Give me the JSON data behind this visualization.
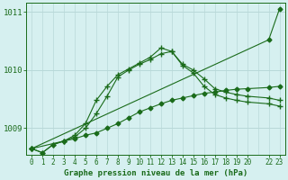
{
  "title": "Graphe pression niveau de la mer (hPa)",
  "bg_color": "#d6f0f0",
  "grid_color": "#b8d8d8",
  "line_color": "#1a6b1a",
  "marker_color": "#1a6b1a",
  "ylim": [
    1008.55,
    1011.15
  ],
  "yticks": [
    1009,
    1010,
    1011
  ],
  "xlim": [
    -0.5,
    23.5
  ],
  "figsize": [
    3.2,
    2.0
  ],
  "dpi": 100,
  "series": [
    {
      "x": [
        0,
        1,
        2,
        3,
        4,
        5,
        6,
        7,
        8,
        9,
        10,
        11,
        12,
        13,
        14,
        15,
        16,
        17,
        18,
        19,
        20,
        22,
        23
      ],
      "y": [
        1008.65,
        1008.58,
        1008.72,
        1008.78,
        1008.82,
        1008.88,
        1008.92,
        1009.0,
        1009.08,
        1009.18,
        1009.28,
        1009.35,
        1009.42,
        1009.48,
        1009.52,
        1009.56,
        1009.6,
        1009.62,
        1009.65,
        1009.67,
        1009.68,
        1009.7,
        1009.72
      ],
      "marker": "D",
      "markersize": 2.5,
      "linewidth": 0.8
    },
    {
      "x": [
        0,
        1,
        2,
        3,
        4,
        5,
        6,
        7,
        8,
        9,
        10,
        11,
        12,
        13,
        14,
        15,
        16,
        17,
        18,
        19,
        20,
        22,
        23
      ],
      "y": [
        1008.65,
        1008.58,
        1008.72,
        1008.78,
        1008.85,
        1009.0,
        1009.25,
        1009.55,
        1009.88,
        1010.0,
        1010.1,
        1010.18,
        1010.28,
        1010.32,
        1010.1,
        1010.0,
        1009.85,
        1009.68,
        1009.62,
        1009.58,
        1009.55,
        1009.52,
        1009.48
      ],
      "marker": "+",
      "markersize": 5,
      "linewidth": 0.8
    },
    {
      "x": [
        0,
        3,
        4,
        5,
        6,
        7,
        8,
        9,
        10,
        11,
        12,
        13,
        14,
        15,
        16,
        17,
        18,
        19,
        20,
        22,
        23
      ],
      "y": [
        1008.65,
        1008.78,
        1008.88,
        1009.08,
        1009.48,
        1009.72,
        1009.92,
        1010.02,
        1010.12,
        1010.22,
        1010.38,
        1010.32,
        1010.08,
        1009.95,
        1009.72,
        1009.58,
        1009.52,
        1009.48,
        1009.45,
        1009.42,
        1009.38
      ],
      "marker": "+",
      "markersize": 5,
      "linewidth": 0.8
    },
    {
      "x": [
        0,
        22,
        23
      ],
      "y": [
        1008.65,
        1010.52,
        1011.05
      ],
      "marker": "D",
      "markersize": 2.5,
      "linewidth": 0.8
    }
  ]
}
